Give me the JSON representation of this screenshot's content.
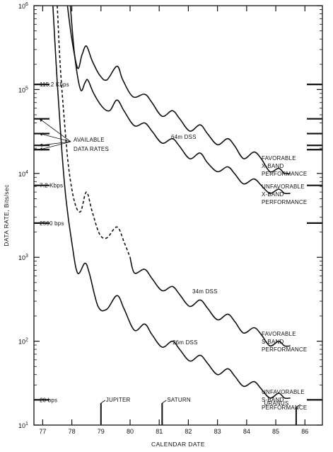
{
  "chart_data": {
    "type": "line",
    "xlabel": "CALENDAR DATE",
    "ylabel": "DATA RATE, Bits/sec",
    "x_scale": "linear",
    "y_scale": "log",
    "xlim": [
      76.7,
      86.6
    ],
    "ylim": [
      10,
      1000000
    ],
    "x_ticks": [
      "77",
      "78",
      "79",
      "80",
      "81",
      "82",
      "83",
      "84",
      "85",
      "86"
    ],
    "x_tick_values": [
      77,
      78,
      79,
      80,
      81,
      82,
      83,
      84,
      85,
      86
    ],
    "y_ticks": [
      {
        "value": 10,
        "base": "10",
        "exp": "1"
      },
      {
        "value": 100,
        "base": "10",
        "exp": "2"
      },
      {
        "value": 1000,
        "base": "10",
        "exp": "3"
      },
      {
        "value": 10000,
        "base": "10",
        "exp": "4"
      },
      {
        "value": 100000,
        "base": "10",
        "exp": "5"
      },
      {
        "value": 1000000,
        "base": "10",
        "exp": "6"
      }
    ],
    "grid": false,
    "available_data_rates": [
      115200,
      44800,
      29866,
      21600,
      19200,
      7200,
      2560,
      20
    ],
    "rate_labels": [
      {
        "text": "115.2 Kbps",
        "value": 115200
      },
      {
        "text": "7.2 Kbps",
        "value": 7200
      },
      {
        "text": "2560 bps",
        "value": 2560
      },
      {
        "text": "20 bps",
        "value": 20
      }
    ],
    "series": [
      {
        "name": "FAVORABLE X-BAND PERFORMANCE",
        "group": "64m DSS",
        "style": "solid",
        "points": [
          [
            77.85,
            1000000
          ],
          [
            78.0,
            400000
          ],
          [
            78.2,
            180000
          ],
          [
            78.35,
            260000
          ],
          [
            78.5,
            330000
          ],
          [
            78.7,
            220000
          ],
          [
            78.95,
            150000
          ],
          [
            79.2,
            130000
          ],
          [
            79.55,
            190000
          ],
          [
            79.75,
            130000
          ],
          [
            80.1,
            82000
          ],
          [
            80.5,
            88000
          ],
          [
            80.75,
            70000
          ],
          [
            81.1,
            48000
          ],
          [
            81.45,
            56000
          ],
          [
            81.7,
            45000
          ],
          [
            82.05,
            32000
          ],
          [
            82.4,
            38000
          ],
          [
            82.65,
            30000
          ],
          [
            83.0,
            22000
          ],
          [
            83.35,
            26000
          ],
          [
            83.6,
            21000
          ],
          [
            83.9,
            15000
          ],
          [
            84.25,
            18000
          ],
          [
            84.5,
            15000
          ],
          [
            84.8,
            10500
          ],
          [
            85.1,
            11500
          ],
          [
            85.3,
            10000
          ],
          [
            85.5,
            10000
          ]
        ]
      },
      {
        "name": "UNFAVORABLE X-BAND PERFORMANCE",
        "group": "64m DSS",
        "style": "solid",
        "points": [
          [
            77.95,
            1000000
          ],
          [
            78.1,
            250000
          ],
          [
            78.3,
            100000
          ],
          [
            78.45,
            120000
          ],
          [
            78.55,
            130000
          ],
          [
            78.75,
            90000
          ],
          [
            79.05,
            62000
          ],
          [
            79.3,
            56000
          ],
          [
            79.55,
            75000
          ],
          [
            79.8,
            55000
          ],
          [
            80.15,
            37000
          ],
          [
            80.5,
            40000
          ],
          [
            80.75,
            32000
          ],
          [
            81.1,
            23000
          ],
          [
            81.45,
            26000
          ],
          [
            81.7,
            21000
          ],
          [
            82.05,
            15000
          ],
          [
            82.4,
            17500
          ],
          [
            82.65,
            13500
          ],
          [
            83.0,
            10500
          ],
          [
            83.35,
            12000
          ],
          [
            83.6,
            9800
          ],
          [
            83.9,
            7500
          ],
          [
            84.25,
            8600
          ],
          [
            84.5,
            7200
          ],
          [
            84.8,
            5800
          ],
          [
            85.1,
            6500
          ],
          [
            85.3,
            5800
          ],
          [
            85.5,
            5800
          ]
        ]
      },
      {
        "name": "7.2 Kbps",
        "style": "dashed",
        "points": [
          [
            77.5,
            1000000
          ],
          [
            77.6,
            200000
          ],
          [
            77.75,
            40000
          ],
          [
            77.9,
            11000
          ],
          [
            78.1,
            4500
          ],
          [
            78.3,
            3500
          ],
          [
            78.5,
            6000
          ],
          [
            78.7,
            3500
          ],
          [
            78.95,
            1900
          ],
          [
            79.2,
            1700
          ],
          [
            79.55,
            2300
          ],
          [
            79.8,
            1500
          ],
          [
            80.0,
            1000
          ]
        ]
      },
      {
        "name": "FAVORABLE S-BAND PERFORMANCE",
        "group": "34m DSS",
        "style": "solid",
        "points": [
          [
            80.0,
            1000
          ],
          [
            80.15,
            650
          ],
          [
            80.5,
            720
          ],
          [
            80.75,
            560
          ],
          [
            81.1,
            400
          ],
          [
            81.45,
            450
          ],
          [
            81.7,
            360
          ],
          [
            82.05,
            260
          ],
          [
            82.4,
            310
          ],
          [
            82.65,
            250
          ],
          [
            83.0,
            180
          ],
          [
            83.35,
            210
          ],
          [
            83.6,
            170
          ],
          [
            83.9,
            125
          ],
          [
            84.25,
            145
          ],
          [
            84.5,
            120
          ],
          [
            84.8,
            88
          ],
          [
            85.1,
            100
          ],
          [
            85.3,
            88
          ],
          [
            85.5,
            88
          ]
        ]
      },
      {
        "name": "UNFAVORABLE S-BAND PERFORMANCE",
        "group": "26m DSS",
        "style": "solid",
        "points": [
          [
            77.35,
            1000000
          ],
          [
            77.5,
            120000
          ],
          [
            77.65,
            20000
          ],
          [
            77.8,
            5000
          ],
          [
            78.0,
            1500
          ],
          [
            78.2,
            650
          ],
          [
            78.45,
            850
          ],
          [
            78.6,
            650
          ],
          [
            78.9,
            260
          ],
          [
            79.2,
            240
          ],
          [
            79.55,
            350
          ],
          [
            79.8,
            240
          ],
          [
            80.15,
            135
          ],
          [
            80.5,
            160
          ],
          [
            80.75,
            120
          ],
          [
            81.1,
            85
          ],
          [
            81.45,
            100
          ],
          [
            81.7,
            80
          ],
          [
            82.05,
            58
          ],
          [
            82.4,
            68
          ],
          [
            82.65,
            55
          ],
          [
            83.0,
            40
          ],
          [
            83.35,
            47
          ],
          [
            83.6,
            38
          ],
          [
            83.9,
            29
          ],
          [
            84.25,
            33
          ],
          [
            84.5,
            27
          ],
          [
            84.8,
            21
          ],
          [
            85.1,
            24
          ],
          [
            85.3,
            21
          ],
          [
            85.5,
            21
          ]
        ]
      }
    ],
    "curve_labels": {
      "fav_x": [
        "FAVORABLE",
        "X-BAND",
        "PERFORMANCE"
      ],
      "unfav_x": [
        "UNFAVORABLE",
        "X-BAND",
        "PERFORMANCE"
      ],
      "fav_s": [
        "FAVORABLE",
        "S-BAND",
        "PERFORMANCE"
      ],
      "unfav_s": [
        "UNFAVORABLE",
        "S-BAND",
        "PERFORMANCE"
      ],
      "dss64": "64m DSS",
      "dss34": "34m DSS",
      "dss26": "26m DSS",
      "available": [
        "AVAILABLE",
        "DATA RATES"
      ]
    },
    "events": [
      {
        "label": "JUPITER",
        "x": 79.0
      },
      {
        "label": "SATURN",
        "x": 81.1
      },
      {
        "label": "URANUS",
        "x": 85.7
      }
    ]
  }
}
